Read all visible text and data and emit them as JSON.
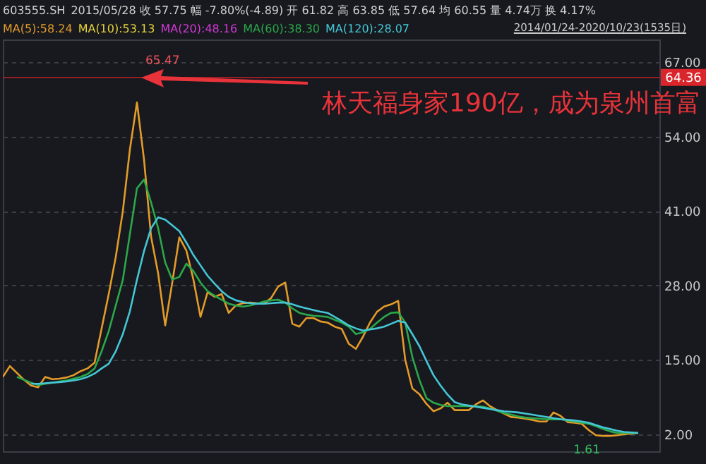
{
  "chart_data": {
    "type": "line",
    "title": "603555.SH",
    "categories": [
      null,
      null,
      null,
      null,
      null,
      null,
      null,
      null,
      null,
      null,
      null,
      null,
      null,
      null,
      null,
      null,
      null,
      null,
      null,
      null,
      null,
      null,
      null,
      null,
      null,
      null,
      null,
      null,
      null,
      null,
      null,
      null,
      null,
      null,
      null,
      null,
      null,
      null,
      null,
      null,
      null,
      null,
      null,
      null,
      null,
      null,
      null,
      null,
      null,
      null,
      null,
      null,
      null,
      null,
      null,
      null,
      null,
      null,
      null,
      null,
      null,
      null,
      null,
      null,
      null,
      null,
      null,
      null,
      null,
      null,
      null,
      null,
      null,
      null,
      null,
      null,
      null,
      null,
      null,
      null,
      null,
      null,
      null,
      null,
      null,
      null,
      null,
      null,
      null,
      null,
      null,
      null,
      null,
      null
    ],
    "series": [
      {
        "name": "MA(5):58.24",
        "color": "#e39b2a",
        "values": [
          12.0,
          13.9,
          12.7,
          11.5,
          10.5,
          10.2,
          12.0,
          11.6,
          11.7,
          11.9,
          12.3,
          13.0,
          13.5,
          14.5,
          20.5,
          26.5,
          33.0,
          41.0,
          51.8,
          60.0,
          50.0,
          36.5,
          30.1,
          21.0,
          28.5,
          36.4,
          34.1,
          29.0,
          22.5,
          26.8,
          26.0,
          26.5,
          23.2,
          24.5,
          24.9,
          25.0,
          24.9,
          24.8,
          25.8,
          27.8,
          28.5,
          21.3,
          20.8,
          22.3,
          22.3,
          21.7,
          21.5,
          20.8,
          20.4,
          17.8,
          16.9,
          19.0,
          21.5,
          23.4,
          24.3,
          24.7,
          25.3,
          15.0,
          10.0,
          9.0,
          7.3,
          6.0,
          6.5,
          7.5,
          6.2,
          6.2,
          6.2,
          7.2,
          7.9,
          6.9,
          6.2,
          5.6,
          5.0,
          4.9,
          4.7,
          4.5,
          4.2,
          4.2,
          5.8,
          5.2,
          4.1,
          4.0,
          3.8,
          2.7,
          1.8,
          1.7,
          1.7,
          1.8,
          2.0,
          2.1,
          2.2,
          null,
          null,
          null
        ]
      },
      {
        "name": "MA(60):38.30",
        "color": "#2aa84a",
        "values": [
          null,
          null,
          12.0,
          11.5,
          11.0,
          10.6,
          10.8,
          11.0,
          11.2,
          11.4,
          11.7,
          12.0,
          12.5,
          13.5,
          16.5,
          20.0,
          24.5,
          29.0,
          37.0,
          45.0,
          46.5,
          42.5,
          38.0,
          32.0,
          29.0,
          29.5,
          31.8,
          30.5,
          28.5,
          27.0,
          26.2,
          25.5,
          24.8,
          24.5,
          24.3,
          24.5,
          24.8,
          25.2,
          25.4,
          25.5,
          25.0,
          24.0,
          23.2,
          22.9,
          22.7,
          22.6,
          22.5,
          22.0,
          21.5,
          20.8,
          19.5,
          19.8,
          20.4,
          21.5,
          22.5,
          23.2,
          23.3,
          21.5,
          15.5,
          11.5,
          8.3,
          7.5,
          7.1,
          6.9,
          6.9,
          6.9,
          6.9,
          6.9,
          6.8,
          6.5,
          6.1,
          5.7,
          5.4,
          5.1,
          4.9,
          4.8,
          4.7,
          4.6,
          4.6,
          4.6,
          4.4,
          4.2,
          4.0,
          3.8,
          3.4,
          2.9,
          2.5,
          2.2,
          2.2,
          2.2,
          2.2,
          null,
          null,
          null
        ]
      },
      {
        "name": "MA(120):28.07",
        "color": "#45c6d6",
        "values": [
          null,
          null,
          null,
          null,
          10.8,
          10.8,
          10.9,
          11.0,
          11.1,
          11.2,
          11.4,
          11.6,
          12.0,
          12.6,
          13.5,
          14.3,
          16.5,
          19.5,
          23.5,
          29.0,
          34.0,
          38.0,
          39.9,
          39.5,
          38.5,
          37.5,
          35.5,
          33.3,
          31.5,
          29.7,
          28.3,
          27.0,
          26.0,
          25.4,
          25.1,
          24.9,
          24.8,
          24.8,
          24.9,
          25.0,
          25.0,
          24.7,
          24.3,
          24.0,
          23.7,
          23.4,
          23.2,
          22.5,
          21.8,
          21.0,
          20.5,
          20.1,
          20.3,
          20.5,
          20.8,
          21.3,
          21.8,
          21.5,
          19.5,
          17.4,
          14.8,
          12.3,
          10.5,
          8.9,
          7.6,
          7.2,
          7.0,
          6.8,
          6.6,
          6.4,
          6.2,
          6.0,
          5.9,
          5.8,
          5.6,
          5.4,
          5.2,
          5.0,
          4.8,
          4.6,
          4.5,
          4.4,
          4.2,
          4.0,
          3.6,
          3.2,
          2.9,
          2.6,
          2.4,
          2.3,
          2.2,
          null,
          null,
          null
        ]
      }
    ],
    "ylim": [
      -1,
      71
    ],
    "yticks": [
      {
        "value": 2,
        "label": "2.00"
      },
      {
        "value": 15,
        "label": "15.00"
      },
      {
        "value": 28,
        "label": "28.00"
      },
      {
        "value": 41,
        "label": "41.00"
      },
      {
        "value": 54,
        "label": "54.00"
      },
      {
        "value": 67,
        "label": "67.00"
      }
    ],
    "grid": "y",
    "legend": "top left",
    "ref_lines": [
      {
        "axis": "y",
        "value": 64.36,
        "label": "64.36",
        "color": "#d9252b"
      }
    ],
    "annotations": [
      "2015/05/28 收 57.75 幅 -7.80%(-4.89) 开 61.82 高 63.85 低 57.64 均 60.55 量 4.74万 换 4.17%",
      "MA(10):53.13",
      "MA(20):48.16",
      "2014/01/24-2020/10/23(1535日)",
      "林天福身家190亿，成为泉州首富",
      {
        "text": "65.47",
        "y": 65.47
      },
      {
        "text": "1.61",
        "y": 1.61
      }
    ]
  }
}
